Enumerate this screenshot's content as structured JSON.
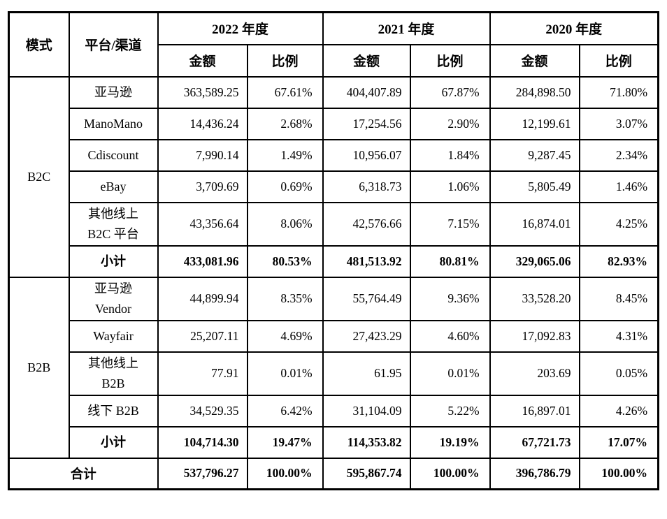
{
  "table": {
    "header": {
      "mode": "模式",
      "platform": "平台/渠道",
      "years": [
        "2022 年度",
        "2021 年度",
        "2020 年度"
      ],
      "amount_label": "金额",
      "ratio_label": "比例"
    },
    "sections": [
      {
        "mode": "B2C",
        "rows": [
          {
            "platform": "亚马逊",
            "bold": false,
            "values": [
              "363,589.25",
              "67.61%",
              "404,407.89",
              "67.87%",
              "284,898.50",
              "71.80%"
            ]
          },
          {
            "platform": "ManoMano",
            "bold": false,
            "values": [
              "14,436.24",
              "2.68%",
              "17,254.56",
              "2.90%",
              "12,199.61",
              "3.07%"
            ]
          },
          {
            "platform": "Cdiscount",
            "bold": false,
            "values": [
              "7,990.14",
              "1.49%",
              "10,956.07",
              "1.84%",
              "9,287.45",
              "2.34%"
            ]
          },
          {
            "platform": "eBay",
            "bold": false,
            "values": [
              "3,709.69",
              "0.69%",
              "6,318.73",
              "1.06%",
              "5,805.49",
              "1.46%"
            ]
          },
          {
            "platform": "其他线上\nB2C 平台",
            "bold": false,
            "values": [
              "43,356.64",
              "8.06%",
              "42,576.66",
              "7.15%",
              "16,874.01",
              "4.25%"
            ]
          },
          {
            "platform": "小计",
            "bold": true,
            "values": [
              "433,081.96",
              "80.53%",
              "481,513.92",
              "80.81%",
              "329,065.06",
              "82.93%"
            ]
          }
        ]
      },
      {
        "mode": "B2B",
        "rows": [
          {
            "platform": "亚马逊\nVendor",
            "bold": false,
            "values": [
              "44,899.94",
              "8.35%",
              "55,764.49",
              "9.36%",
              "33,528.20",
              "8.45%"
            ]
          },
          {
            "platform": "Wayfair",
            "bold": false,
            "values": [
              "25,207.11",
              "4.69%",
              "27,423.29",
              "4.60%",
              "17,092.83",
              "4.31%"
            ]
          },
          {
            "platform": "其他线上\nB2B",
            "bold": false,
            "values": [
              "77.91",
              "0.01%",
              "61.95",
              "0.01%",
              "203.69",
              "0.05%"
            ]
          },
          {
            "platform": "线下 B2B",
            "bold": false,
            "values": [
              "34,529.35",
              "6.42%",
              "31,104.09",
              "5.22%",
              "16,897.01",
              "4.26%"
            ]
          },
          {
            "platform": "小计",
            "bold": true,
            "values": [
              "104,714.30",
              "19.47%",
              "114,353.82",
              "19.19%",
              "67,721.73",
              "17.07%"
            ]
          }
        ]
      }
    ],
    "total_row": {
      "label": "合计",
      "values": [
        "537,796.27",
        "100.00%",
        "595,867.74",
        "100.00%",
        "396,786.79",
        "100.00%"
      ]
    }
  }
}
